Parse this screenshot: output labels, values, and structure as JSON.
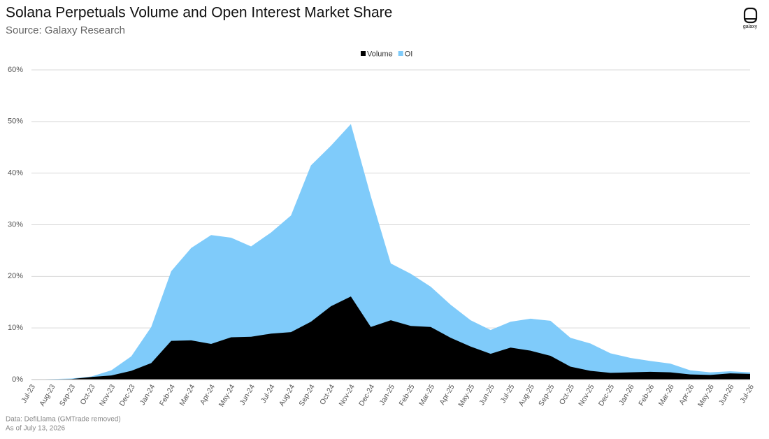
{
  "chart_data": {
    "type": "area",
    "title": "Solana Perpetuals Volume and Open Interest Market Share",
    "subtitle": "Source: Galaxy Research",
    "brand": "galaxy",
    "notes": [
      "Data: DefiLlama (GMTrade removed)",
      "As of July 13, 2026"
    ],
    "categories": [
      "Jul-23",
      "Aug-23",
      "Sep-23",
      "Oct-23",
      "Nov-23",
      "Dec-23",
      "Jan-24",
      "Feb-24",
      "Mar-24",
      "Apr-24",
      "May-24",
      "Jun-24",
      "Jul-24",
      "Aug-24",
      "Sep-24",
      "Oct-24",
      "Nov-24",
      "Dec-24",
      "Jan-25",
      "Feb-25",
      "Mar-25",
      "Apr-25",
      "May-25",
      "Jun-25",
      "Jul-25",
      "Aug-25",
      "Sep-25",
      "Oct-25",
      "Nov-25",
      "Dec-25",
      "Jan-26",
      "Feb-26",
      "Mar-26",
      "Apr-26",
      "May-26",
      "Jun-26",
      "Jul-26"
    ],
    "series": [
      {
        "name": "Volume",
        "color": "#000000",
        "values": [
          0,
          0.05,
          0.1,
          0.5,
          0.8,
          1.7,
          3.2,
          7.5,
          7.6,
          6.9,
          8.2,
          8.3,
          8.9,
          9.2,
          11.2,
          14.2,
          16.1,
          10.2,
          11.5,
          10.4,
          10.2,
          8.1,
          6.4,
          5,
          6.2,
          5.6,
          4.6,
          2.5,
          1.7,
          1.3,
          1.4,
          1.5,
          1.4,
          1.0,
          0.9,
          1.2,
          1.1
        ]
      },
      {
        "name": "OI",
        "color": "#7fcbfa",
        "values": [
          0,
          0.1,
          0.2,
          0.6,
          1.8,
          4.5,
          10.2,
          21,
          25.5,
          28,
          27.5,
          25.8,
          28.5,
          31.8,
          41.5,
          45.3,
          49.5,
          35.5,
          22.5,
          20.5,
          18,
          14.5,
          11.5,
          9.6,
          11.2,
          11.8,
          11.4,
          8.1,
          7,
          5.1,
          4.2,
          3.6,
          3.1,
          1.8,
          1.4,
          1.6,
          1.4
        ]
      }
    ],
    "ylim": [
      0,
      60
    ],
    "yticks": [
      {
        "value": 0,
        "label": "0%"
      },
      {
        "value": 10,
        "label": "10%"
      },
      {
        "value": 20,
        "label": "20%"
      },
      {
        "value": 30,
        "label": "30%"
      },
      {
        "value": 40,
        "label": "40%"
      },
      {
        "value": 50,
        "label": "50%"
      },
      {
        "value": 60,
        "label": "60%"
      }
    ],
    "grid": true,
    "legend": "top"
  }
}
